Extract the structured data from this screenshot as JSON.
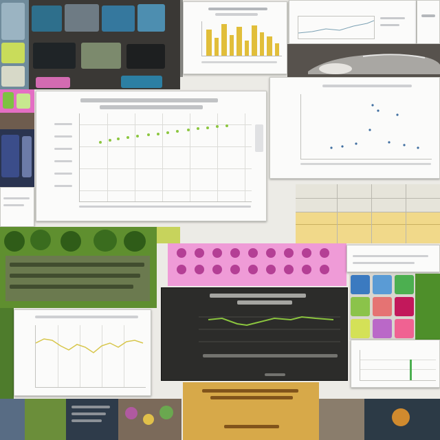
{
  "colors": {
    "accent_green": "#7dc242",
    "accent_yellow": "#e1be3a",
    "accent_magenta": "#e46fc4",
    "dark_panel": "#2d2d2b",
    "card_bg": "#fbfbfa"
  },
  "icons": [
    "thumbnail-icon",
    "car-image-icon",
    "plant-image-icon",
    "book-cover-icon"
  ]
}
